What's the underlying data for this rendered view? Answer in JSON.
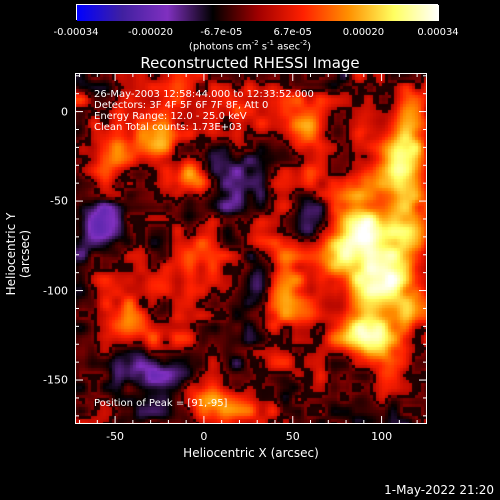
{
  "chart_data": {
    "type": "heatmap",
    "title": "Reconstructed RHESSI Image",
    "xlabel": "Heliocentric X (arcsec)",
    "ylabel": "Heliocentric Y (arcsec)",
    "xlim": [
      -72,
      125
    ],
    "ylim": [
      -174,
      21
    ],
    "x_ticks": [
      "-50",
      "0",
      "50",
      "100"
    ],
    "x_tick_values": [
      -50,
      0,
      50,
      100
    ],
    "y_ticks": [
      "0",
      "-50",
      "-100",
      "-150"
    ],
    "y_tick_values": [
      0,
      -50,
      -100,
      -150
    ],
    "colorbar": {
      "ticks": [
        "-0.00034",
        "-0.00020",
        "-6.7e-05",
        "6.7e-05",
        "0.00020",
        "0.00034"
      ],
      "tick_values": [
        -0.00034,
        -0.0002,
        -6.7e-05,
        6.7e-05,
        0.0002,
        0.00034
      ],
      "units_main": "(photons cm",
      "units_exp1": "-2",
      "units_mid": " s",
      "units_exp2": "-1",
      "units_end": " asec",
      "units_exp3": "-2",
      "units_close": ")",
      "colors": [
        "#0000ff",
        "#4020a0",
        "#8030c0",
        "#000000",
        "#a00000",
        "#ff2000",
        "#ff9000",
        "#ffff60",
        "#ffffff"
      ]
    },
    "annotations": {
      "time_range": "26-May-2003 12:58:44.000 to 12:33:52.000",
      "detectors": "Detectors: 3F 4F 5F 6F 7F 8F, Att 0",
      "energy": "Energy Range: 12.0 - 25.0 keV",
      "clean": "Clean    Total counts: 1.73E+03",
      "peak": "Position of Peak = [91,-95]"
    },
    "peak": {
      "x": 91,
      "y": -95
    },
    "hot_regions": [
      {
        "x": 100,
        "y": -90,
        "w": 22,
        "h": 38,
        "v": 1.0
      },
      {
        "x": 80,
        "y": -65,
        "w": 18,
        "h": 22,
        "v": 0.8
      },
      {
        "x": 112,
        "y": -30,
        "w": 10,
        "h": 30,
        "v": 0.85
      },
      {
        "x": 90,
        "y": -125,
        "w": 16,
        "h": 12,
        "v": 0.6
      },
      {
        "x": -10,
        "y": -35,
        "w": 10,
        "h": 10,
        "v": 0.6
      },
      {
        "x": -25,
        "y": -15,
        "w": 12,
        "h": 12,
        "v": 0.55
      },
      {
        "x": 45,
        "y": -105,
        "w": 14,
        "h": 20,
        "v": 0.6
      },
      {
        "x": -45,
        "y": -115,
        "w": 14,
        "h": 12,
        "v": 0.5
      },
      {
        "x": -55,
        "y": -25,
        "w": 12,
        "h": 20,
        "v": 0.45
      },
      {
        "x": 10,
        "y": -160,
        "w": 18,
        "h": 8,
        "v": 0.45
      },
      {
        "x": 55,
        "y": -10,
        "w": 12,
        "h": 10,
        "v": 0.4
      }
    ],
    "cold_regions": [
      {
        "x": -60,
        "y": -65,
        "w": 14,
        "h": 14,
        "v": -0.9
      },
      {
        "x": 15,
        "y": -35,
        "w": 12,
        "h": 14,
        "v": -0.6
      },
      {
        "x": -30,
        "y": -145,
        "w": 20,
        "h": 12,
        "v": -0.7
      },
      {
        "x": 60,
        "y": -60,
        "w": 14,
        "h": 14,
        "v": -0.6
      },
      {
        "x": 30,
        "y": -95,
        "w": 10,
        "h": 12,
        "v": -0.5
      }
    ]
  },
  "footer": "1-May-2022 21:20"
}
